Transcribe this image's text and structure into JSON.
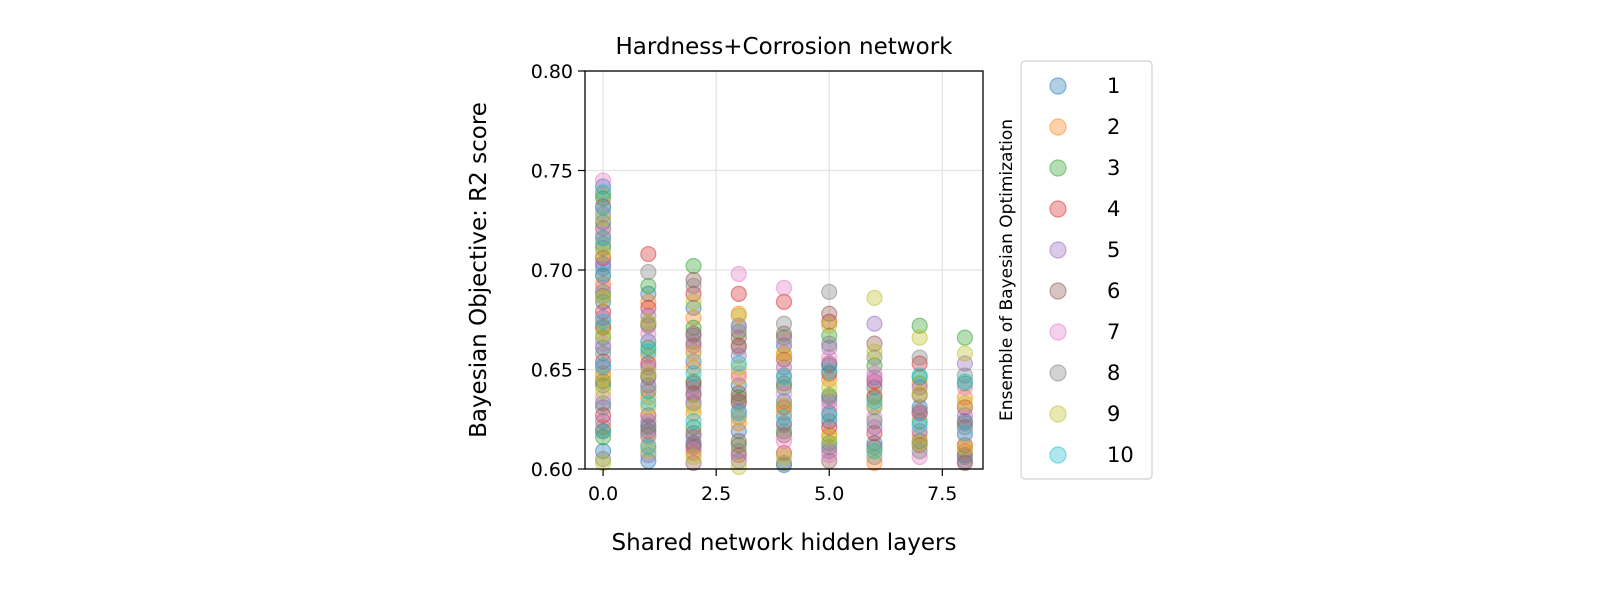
{
  "chart_data": {
    "type": "scatter",
    "title": "Hardness+Corrosion network",
    "xlabel": "Shared network hidden layers",
    "ylabel": "Bayesian Objective: R2 score",
    "xlim": [
      -0.4,
      8.4
    ],
    "ylim": [
      0.6,
      0.8
    ],
    "x_ticks": [
      "0.0",
      "2.5",
      "5.0",
      "7.5"
    ],
    "y_ticks": [
      "0.60",
      "0.65",
      "0.70",
      "0.75",
      "0.80"
    ],
    "grid": true,
    "legend": {
      "title": "Ensemble of Bayesian Optimization",
      "position": "outside-right"
    },
    "marker_alpha": 0.35,
    "series": [
      {
        "name": "1",
        "color": "#1f77b4",
        "points": [
          [
            0,
            0.742
          ],
          [
            0,
            0.724
          ],
          [
            0,
            0.703
          ],
          [
            0,
            0.684
          ],
          [
            0,
            0.661
          ],
          [
            0,
            0.633
          ],
          [
            0,
            0.609
          ],
          [
            1,
            0.688
          ],
          [
            1,
            0.664
          ],
          [
            1,
            0.642
          ],
          [
            1,
            0.621
          ],
          [
            1,
            0.604
          ],
          [
            2,
            0.681
          ],
          [
            2,
            0.654
          ],
          [
            2,
            0.633
          ],
          [
            2,
            0.613
          ],
          [
            3,
            0.672
          ],
          [
            3,
            0.642
          ],
          [
            3,
            0.619
          ],
          [
            4,
            0.662
          ],
          [
            4,
            0.634
          ],
          [
            4,
            0.602
          ],
          [
            5,
            0.652
          ],
          [
            5,
            0.624
          ],
          [
            6,
            0.641
          ],
          [
            6,
            0.613
          ],
          [
            7,
            0.631
          ],
          [
            7,
            0.614
          ],
          [
            8,
            0.624
          ],
          [
            8,
            0.607
          ]
        ]
      },
      {
        "name": "2",
        "color": "#ff7f0e",
        "points": [
          [
            0,
            0.738
          ],
          [
            0,
            0.716
          ],
          [
            0,
            0.693
          ],
          [
            0,
            0.672
          ],
          [
            0,
            0.648
          ],
          [
            0,
            0.621
          ],
          [
            1,
            0.684
          ],
          [
            1,
            0.657
          ],
          [
            1,
            0.636
          ],
          [
            1,
            0.612
          ],
          [
            2,
            0.676
          ],
          [
            2,
            0.651
          ],
          [
            2,
            0.628
          ],
          [
            2,
            0.608
          ],
          [
            3,
            0.678
          ],
          [
            3,
            0.646
          ],
          [
            3,
            0.623
          ],
          [
            4,
            0.658
          ],
          [
            4,
            0.628
          ],
          [
            5,
            0.645
          ],
          [
            5,
            0.617
          ],
          [
            6,
            0.637
          ],
          [
            6,
            0.603
          ],
          [
            7,
            0.643
          ],
          [
            7,
            0.617
          ],
          [
            8,
            0.636
          ],
          [
            8,
            0.609
          ]
        ]
      },
      {
        "name": "3",
        "color": "#2ca02c",
        "points": [
          [
            0,
            0.736
          ],
          [
            0,
            0.711
          ],
          [
            0,
            0.689
          ],
          [
            0,
            0.666
          ],
          [
            0,
            0.642
          ],
          [
            0,
            0.616
          ],
          [
            1,
            0.692
          ],
          [
            1,
            0.661
          ],
          [
            1,
            0.639
          ],
          [
            1,
            0.617
          ],
          [
            2,
            0.702
          ],
          [
            2,
            0.671
          ],
          [
            2,
            0.644
          ],
          [
            2,
            0.621
          ],
          [
            3,
            0.669
          ],
          [
            3,
            0.636
          ],
          [
            3,
            0.612
          ],
          [
            4,
            0.666
          ],
          [
            4,
            0.641
          ],
          [
            4,
            0.619
          ],
          [
            5,
            0.667
          ],
          [
            5,
            0.637
          ],
          [
            5,
            0.613
          ],
          [
            6,
            0.652
          ],
          [
            6,
            0.624
          ],
          [
            7,
            0.672
          ],
          [
            7,
            0.646
          ],
          [
            7,
            0.624
          ],
          [
            8,
            0.666
          ],
          [
            8,
            0.643
          ]
        ]
      },
      {
        "name": "4",
        "color": "#d62728",
        "points": [
          [
            0,
            0.732
          ],
          [
            0,
            0.706
          ],
          [
            0,
            0.679
          ],
          [
            0,
            0.654
          ],
          [
            0,
            0.627
          ],
          [
            1,
            0.708
          ],
          [
            1,
            0.681
          ],
          [
            1,
            0.653
          ],
          [
            1,
            0.627
          ],
          [
            2,
            0.688
          ],
          [
            2,
            0.662
          ],
          [
            2,
            0.638
          ],
          [
            2,
            0.611
          ],
          [
            3,
            0.688
          ],
          [
            3,
            0.662
          ],
          [
            3,
            0.634
          ],
          [
            3,
            0.607
          ],
          [
            4,
            0.684
          ],
          [
            4,
            0.655
          ],
          [
            4,
            0.631
          ],
          [
            4,
            0.608
          ],
          [
            5,
            0.674
          ],
          [
            5,
            0.648
          ],
          [
            5,
            0.621
          ],
          [
            6,
            0.644
          ],
          [
            6,
            0.618
          ],
          [
            7,
            0.653
          ],
          [
            7,
            0.628
          ],
          [
            8,
            0.631
          ],
          [
            8,
            0.612
          ]
        ]
      },
      {
        "name": "5",
        "color": "#9467bd",
        "points": [
          [
            0,
            0.728
          ],
          [
            0,
            0.701
          ],
          [
            0,
            0.676
          ],
          [
            0,
            0.651
          ],
          [
            0,
            0.624
          ],
          [
            1,
            0.677
          ],
          [
            1,
            0.651
          ],
          [
            1,
            0.624
          ],
          [
            1,
            0.607
          ],
          [
            2,
            0.667
          ],
          [
            2,
            0.641
          ],
          [
            2,
            0.616
          ],
          [
            3,
            0.657
          ],
          [
            3,
            0.629
          ],
          [
            3,
            0.604
          ],
          [
            4,
            0.651
          ],
          [
            4,
            0.623
          ],
          [
            5,
            0.661
          ],
          [
            5,
            0.634
          ],
          [
            5,
            0.609
          ],
          [
            6,
            0.673
          ],
          [
            6,
            0.646
          ],
          [
            6,
            0.621
          ],
          [
            7,
            0.641
          ],
          [
            7,
            0.619
          ],
          [
            8,
            0.653
          ],
          [
            8,
            0.627
          ],
          [
            8,
            0.604
          ]
        ]
      },
      {
        "name": "6",
        "color": "#8c564b",
        "points": [
          [
            0,
            0.721
          ],
          [
            0,
            0.697
          ],
          [
            0,
            0.671
          ],
          [
            0,
            0.644
          ],
          [
            0,
            0.619
          ],
          [
            1,
            0.672
          ],
          [
            1,
            0.646
          ],
          [
            1,
            0.619
          ],
          [
            2,
            0.695
          ],
          [
            2,
            0.668
          ],
          [
            2,
            0.643
          ],
          [
            2,
            0.618
          ],
          [
            2,
            0.603
          ],
          [
            3,
            0.666
          ],
          [
            3,
            0.638
          ],
          [
            3,
            0.614
          ],
          [
            4,
            0.668
          ],
          [
            4,
            0.643
          ],
          [
            4,
            0.617
          ],
          [
            5,
            0.678
          ],
          [
            5,
            0.653
          ],
          [
            5,
            0.628
          ],
          [
            5,
            0.604
          ],
          [
            6,
            0.663
          ],
          [
            6,
            0.636
          ],
          [
            6,
            0.611
          ],
          [
            7,
            0.637
          ],
          [
            7,
            0.612
          ],
          [
            8,
            0.621
          ],
          [
            8,
            0.603
          ]
        ]
      },
      {
        "name": "7",
        "color": "#e377c2",
        "points": [
          [
            0,
            0.745
          ],
          [
            0,
            0.718
          ],
          [
            0,
            0.691
          ],
          [
            0,
            0.663
          ],
          [
            0,
            0.636
          ],
          [
            1,
            0.668
          ],
          [
            1,
            0.641
          ],
          [
            1,
            0.616
          ],
          [
            2,
            0.659
          ],
          [
            2,
            0.634
          ],
          [
            2,
            0.609
          ],
          [
            3,
            0.698
          ],
          [
            3,
            0.671
          ],
          [
            3,
            0.648
          ],
          [
            3,
            0.626
          ],
          [
            4,
            0.691
          ],
          [
            4,
            0.664
          ],
          [
            4,
            0.638
          ],
          [
            4,
            0.614
          ],
          [
            5,
            0.656
          ],
          [
            5,
            0.631
          ],
          [
            5,
            0.607
          ],
          [
            6,
            0.648
          ],
          [
            6,
            0.626
          ],
          [
            7,
            0.628
          ],
          [
            7,
            0.606
          ],
          [
            8,
            0.641
          ],
          [
            8,
            0.617
          ]
        ]
      },
      {
        "name": "8",
        "color": "#7f7f7f",
        "points": [
          [
            0,
            0.713
          ],
          [
            0,
            0.687
          ],
          [
            0,
            0.658
          ],
          [
            0,
            0.631
          ],
          [
            0,
            0.605
          ],
          [
            1,
            0.699
          ],
          [
            1,
            0.673
          ],
          [
            1,
            0.647
          ],
          [
            1,
            0.622
          ],
          [
            2,
            0.692
          ],
          [
            2,
            0.664
          ],
          [
            2,
            0.637
          ],
          [
            2,
            0.612
          ],
          [
            3,
            0.661
          ],
          [
            3,
            0.633
          ],
          [
            3,
            0.609
          ],
          [
            4,
            0.673
          ],
          [
            4,
            0.647
          ],
          [
            4,
            0.622
          ],
          [
            4,
            0.603
          ],
          [
            5,
            0.689
          ],
          [
            5,
            0.663
          ],
          [
            5,
            0.636
          ],
          [
            5,
            0.611
          ],
          [
            6,
            0.656
          ],
          [
            6,
            0.631
          ],
          [
            6,
            0.606
          ],
          [
            7,
            0.656
          ],
          [
            7,
            0.629
          ],
          [
            7,
            0.609
          ],
          [
            8,
            0.647
          ],
          [
            8,
            0.623
          ],
          [
            8,
            0.606
          ]
        ]
      },
      {
        "name": "9",
        "color": "#bcbd22",
        "points": [
          [
            0,
            0.726
          ],
          [
            0,
            0.708
          ],
          [
            0,
            0.686
          ],
          [
            0,
            0.668
          ],
          [
            0,
            0.646
          ],
          [
            0,
            0.639
          ],
          [
            0,
            0.603
          ],
          [
            1,
            0.674
          ],
          [
            1,
            0.648
          ],
          [
            1,
            0.631
          ],
          [
            1,
            0.609
          ],
          [
            2,
            0.684
          ],
          [
            2,
            0.658
          ],
          [
            2,
            0.631
          ],
          [
            2,
            0.606
          ],
          [
            3,
            0.677
          ],
          [
            3,
            0.651
          ],
          [
            3,
            0.626
          ],
          [
            3,
            0.601
          ],
          [
            4,
            0.657
          ],
          [
            4,
            0.632
          ],
          [
            4,
            0.606
          ],
          [
            5,
            0.672
          ],
          [
            5,
            0.641
          ],
          [
            5,
            0.616
          ],
          [
            6,
            0.686
          ],
          [
            6,
            0.659
          ],
          [
            6,
            0.632
          ],
          [
            6,
            0.609
          ],
          [
            7,
            0.666
          ],
          [
            7,
            0.638
          ],
          [
            7,
            0.613
          ],
          [
            8,
            0.658
          ],
          [
            8,
            0.633
          ],
          [
            8,
            0.611
          ]
        ]
      },
      {
        "name": "10",
        "color": "#17becf",
        "points": [
          [
            0,
            0.739
          ],
          [
            0,
            0.731
          ],
          [
            0,
            0.716
          ],
          [
            0,
            0.698
          ],
          [
            0,
            0.674
          ],
          [
            0,
            0.652
          ],
          [
            0,
            0.619
          ],
          [
            1,
            0.659
          ],
          [
            1,
            0.633
          ],
          [
            1,
            0.611
          ],
          [
            2,
            0.648
          ],
          [
            2,
            0.624
          ],
          [
            3,
            0.653
          ],
          [
            3,
            0.628
          ],
          [
            4,
            0.646
          ],
          [
            4,
            0.626
          ],
          [
            5,
            0.649
          ],
          [
            5,
            0.627
          ],
          [
            6,
            0.634
          ],
          [
            6,
            0.609
          ],
          [
            7,
            0.647
          ],
          [
            7,
            0.622
          ],
          [
            8,
            0.644
          ],
          [
            8,
            0.618
          ]
        ]
      }
    ]
  }
}
